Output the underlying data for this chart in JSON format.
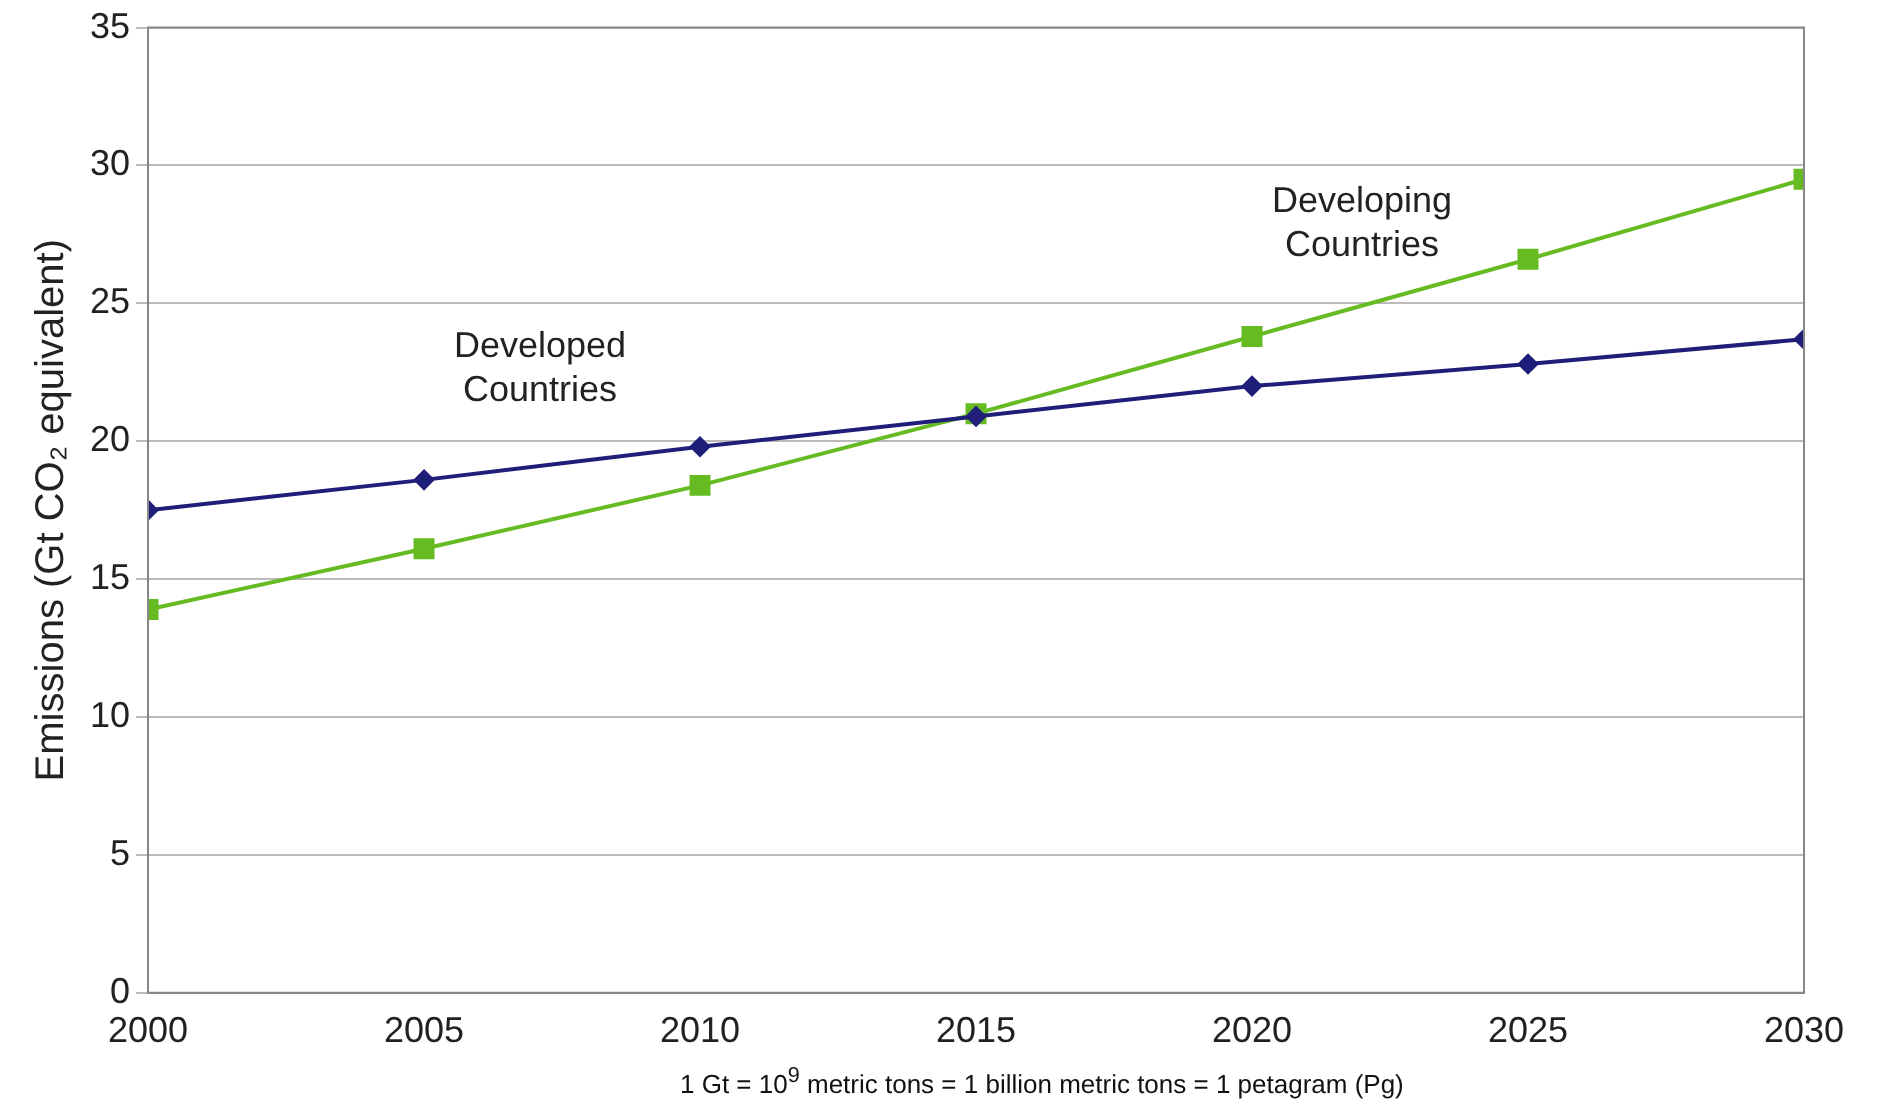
{
  "chart_data": {
    "type": "line",
    "ylabel": "Emissions (Gt CO₂ equivalent)",
    "x": [
      2000,
      2005,
      2010,
      2015,
      2020,
      2025,
      2030
    ],
    "series": [
      {
        "name": "Developed Countries",
        "color": "#1f1f7a",
        "marker": "diamond",
        "values": [
          17.5,
          18.6,
          19.8,
          20.9,
          22.0,
          22.8,
          23.7
        ]
      },
      {
        "name": "Developing Countries",
        "color": "#66bb22",
        "marker": "square",
        "values": [
          13.9,
          16.1,
          18.4,
          21.0,
          23.8,
          26.6,
          29.5
        ]
      }
    ],
    "xlim": [
      2000,
      2030
    ],
    "xticks": [
      2000,
      2005,
      2010,
      2015,
      2020,
      2025,
      2030
    ],
    "ylim": [
      0,
      35
    ],
    "yticks": [
      0,
      5,
      10,
      15,
      20,
      25,
      30,
      35
    ],
    "grid": "y",
    "legend": false,
    "annotations": [
      "1 Gt = 10$^{9}$ metric tons = 1 billion metric tons = 1 petagram (Pg)"
    ]
  }
}
